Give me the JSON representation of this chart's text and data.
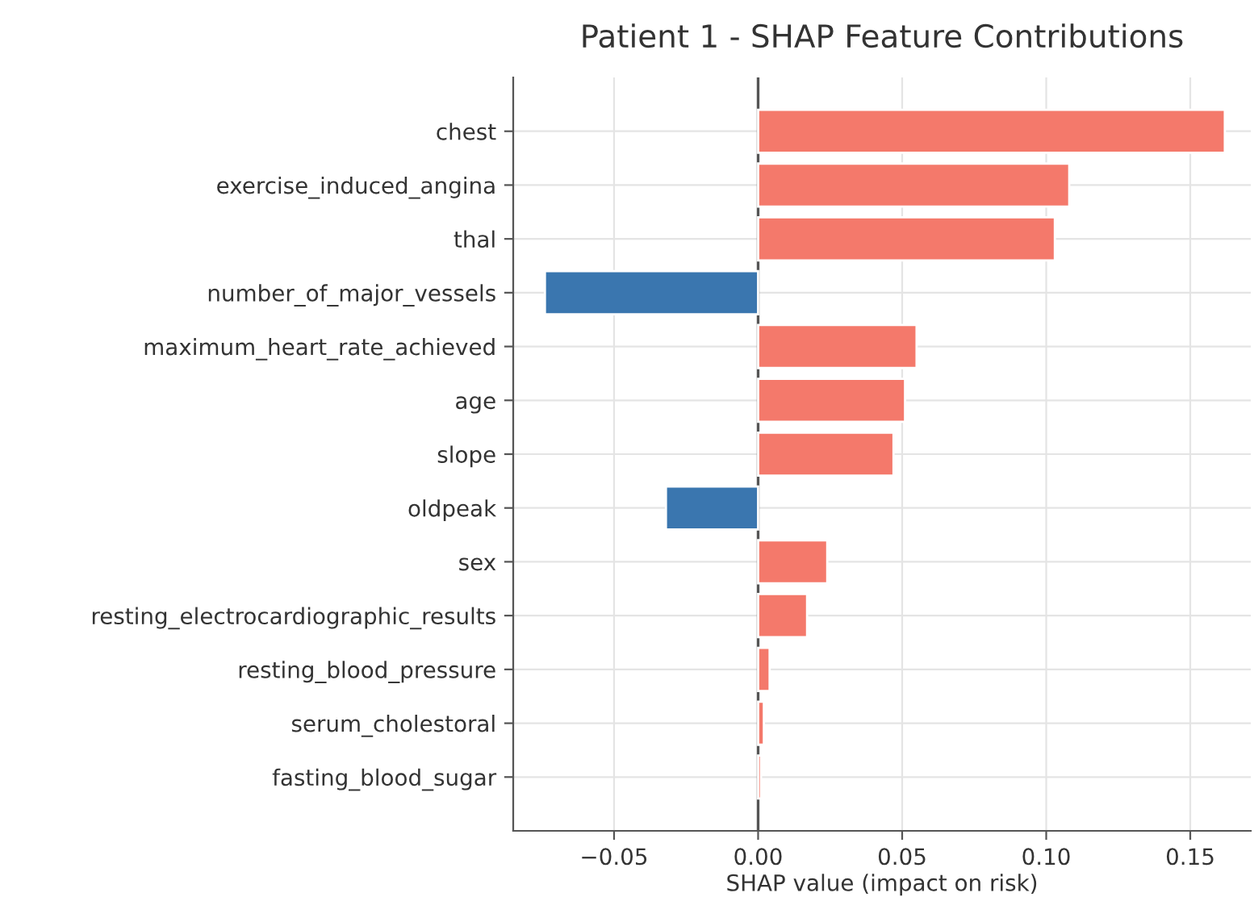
{
  "chart_data": {
    "type": "bar",
    "orientation": "horizontal",
    "title": "Patient 1 - SHAP Feature Contributions",
    "xlabel": "SHAP value (impact on risk)",
    "categories": [
      "chest",
      "exercise_induced_angina",
      "thal",
      "number_of_major_vessels",
      "maximum_heart_rate_achieved",
      "age",
      "slope",
      "oldpeak",
      "sex",
      "resting_electrocardiographic_results",
      "resting_blood_pressure",
      "serum_cholestoral",
      "fasting_blood_sugar"
    ],
    "values": [
      0.162,
      0.108,
      0.103,
      -0.074,
      0.055,
      0.051,
      0.047,
      -0.032,
      0.024,
      0.017,
      0.004,
      0.002,
      0.001
    ],
    "colors": [
      "#f4796b",
      "#f4796b",
      "#f4796b",
      "#3a76af",
      "#f4796b",
      "#f4796b",
      "#f4796b",
      "#3a76af",
      "#f4796b",
      "#f4796b",
      "#f4796b",
      "#f4796b",
      "#f4796b"
    ],
    "xlim": [
      -0.085,
      0.171
    ],
    "xticks": [
      {
        "value": -0.05,
        "label": "−0.05"
      },
      {
        "value": 0.0,
        "label": "0.00"
      },
      {
        "value": 0.05,
        "label": "0.05"
      },
      {
        "value": 0.1,
        "label": "0.10"
      },
      {
        "value": 0.15,
        "label": "0.15"
      }
    ],
    "ref_lines": [
      {
        "axis": "x",
        "value": 0.0,
        "color": "#555555"
      }
    ],
    "grid": true
  }
}
